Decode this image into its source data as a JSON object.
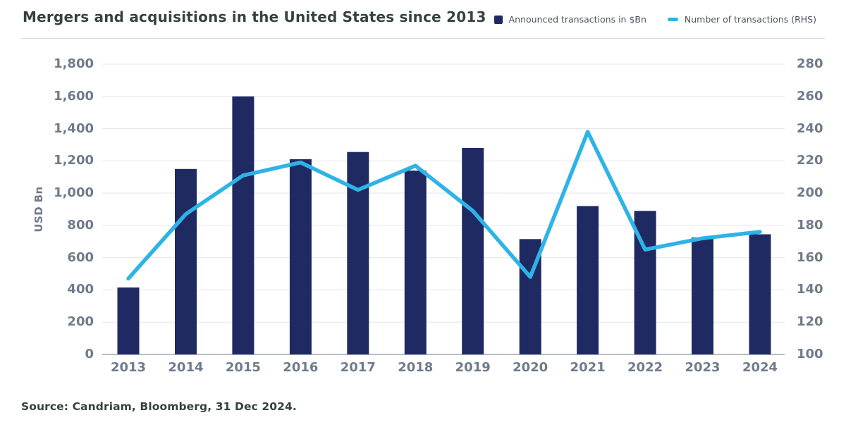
{
  "title": "Mergers and acquisitions in the United States since 2013",
  "source": "Source: Candriam, Bloomberg, 31 Dec 2024.",
  "legend": [
    {
      "label": "Announced transactions in $Bn",
      "marker": "square",
      "color": "#1f2a63"
    },
    {
      "label": "Number of transactions (RHS)",
      "marker": "dash",
      "color": "#2eb3e7"
    }
  ],
  "colors": {
    "bar": "#1f2a63",
    "line": "#2eb3e7",
    "gridline": "#e5e8ec",
    "axis_line": "#9ea7b0",
    "title_text": "#364240",
    "axis_text": "#6f7b8b",
    "background": "#ffffff"
  },
  "chart_data": {
    "type": "bar",
    "subtype": "bar+line dual axis",
    "title": "Mergers and acquisitions in the United States since 2013",
    "categories": [
      "2013",
      "2014",
      "2015",
      "2016",
      "2017",
      "2018",
      "2019",
      "2020",
      "2021",
      "2022",
      "2023",
      "2024"
    ],
    "series": [
      {
        "name": "Announced transactions in $Bn",
        "type": "bar",
        "axis": "left",
        "color": "#1f2a63",
        "values": [
          415,
          1150,
          1600,
          1210,
          1255,
          1140,
          1280,
          715,
          920,
          890,
          725,
          745
        ]
      },
      {
        "name": "Number of transactions (RHS)",
        "type": "line",
        "axis": "right",
        "color": "#2eb3e7",
        "values": [
          147,
          187,
          211,
          219,
          202,
          217,
          189,
          148,
          238,
          165,
          172,
          176
        ]
      }
    ],
    "left_axis": {
      "title": "USD Bn",
      "min": 0,
      "max": 1800,
      "step": 200,
      "ticks": [
        {
          "value": 1800,
          "label": "1,800"
        },
        {
          "value": 1600,
          "label": "1,600"
        },
        {
          "value": 1400,
          "label": "1,400"
        },
        {
          "value": 1200,
          "label": "1,200"
        },
        {
          "value": 1000,
          "label": "1,000"
        },
        {
          "value": 800,
          "label": "800"
        },
        {
          "value": 600,
          "label": "600"
        },
        {
          "value": 400,
          "label": "400"
        },
        {
          "value": 200,
          "label": "200"
        },
        {
          "value": 0,
          "label": "0"
        }
      ]
    },
    "right_axis": {
      "title": "Number of transactions (RHS)",
      "min": 100,
      "max": 280,
      "step": 20,
      "ticks": [
        {
          "value": 280,
          "label": "280"
        },
        {
          "value": 260,
          "label": "260"
        },
        {
          "value": 240,
          "label": "240"
        },
        {
          "value": 220,
          "label": "220"
        },
        {
          "value": 200,
          "label": "200"
        },
        {
          "value": 180,
          "label": "180"
        },
        {
          "value": 160,
          "label": "160"
        },
        {
          "value": 140,
          "label": "140"
        },
        {
          "value": 120,
          "label": "120"
        },
        {
          "value": 100,
          "label": "100"
        }
      ]
    },
    "grid": true,
    "legend_position": "top-right"
  }
}
